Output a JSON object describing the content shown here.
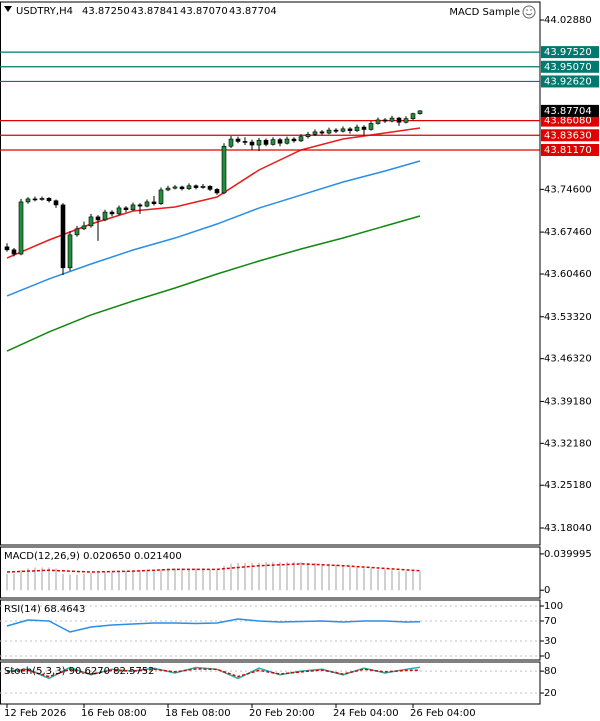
{
  "chart_data": [
    {
      "type": "candlestick",
      "title": "USDTRY,H4",
      "header_values": [
        "43.87250",
        "43.87841",
        "43.87070",
        "43.87704"
      ],
      "expert": "MACD Sample",
      "up_color": "#1f8f3a",
      "down_color": "#000000",
      "categories": [
        "12 Feb 2026",
        null,
        null,
        null,
        null,
        null,
        null,
        null,
        null,
        null,
        null,
        "16 Feb 08:00",
        null,
        null,
        null,
        null,
        null,
        null,
        null,
        null,
        null,
        null,
        null,
        "18 Feb 08:00",
        null,
        null,
        null,
        null,
        null,
        null,
        null,
        null,
        null,
        null,
        null,
        "20 Feb 20:00",
        null,
        null,
        null,
        null,
        null,
        null,
        null,
        null,
        null,
        null,
        null,
        "24 Feb 04:00",
        null,
        null,
        null,
        null,
        null,
        null,
        null,
        null,
        null,
        null,
        "26 Feb 04:00",
        null
      ],
      "open": [
        43.65,
        43.645,
        43.638,
        43.725,
        43.73,
        43.729,
        43.731,
        43.727,
        43.72,
        43.615,
        43.67,
        43.68,
        43.685,
        43.7,
        43.695,
        43.708,
        43.705,
        43.715,
        43.712,
        43.72,
        43.718,
        43.725,
        43.722,
        43.745,
        43.748,
        43.75,
        43.747,
        43.752,
        43.749,
        43.751,
        43.746,
        43.74,
        43.818,
        43.83,
        43.826,
        43.825,
        43.82,
        43.828,
        43.821,
        43.829,
        43.823,
        43.83,
        43.827,
        43.834,
        43.838,
        43.842,
        43.84,
        43.845,
        43.843,
        43.847,
        43.844,
        43.85,
        43.846,
        43.856,
        43.862,
        43.86,
        43.865,
        43.858,
        43.864,
        43.8725
      ],
      "high": [
        43.656,
        43.648,
        43.73,
        43.733,
        43.734,
        43.734,
        43.733,
        43.729,
        43.723,
        43.676,
        43.685,
        43.692,
        43.705,
        43.703,
        43.712,
        43.711,
        43.719,
        43.718,
        43.724,
        43.723,
        43.729,
        43.735,
        43.749,
        43.752,
        43.753,
        43.752,
        43.756,
        43.754,
        43.755,
        43.753,
        43.748,
        43.823,
        43.835,
        43.834,
        43.833,
        43.829,
        43.832,
        43.831,
        43.833,
        43.832,
        43.834,
        43.833,
        43.838,
        43.842,
        43.846,
        43.845,
        43.849,
        43.848,
        43.851,
        43.85,
        43.854,
        43.853,
        43.86,
        43.866,
        43.865,
        43.869,
        43.867,
        43.868,
        43.874,
        43.87841
      ],
      "low": [
        43.642,
        43.634,
        43.636,
        43.722,
        43.726,
        43.727,
        43.724,
        43.715,
        43.603,
        43.61,
        43.667,
        43.678,
        43.682,
        43.66,
        43.693,
        43.701,
        43.703,
        43.708,
        43.71,
        43.705,
        43.716,
        43.719,
        43.72,
        43.743,
        43.746,
        43.744,
        43.745,
        43.746,
        43.747,
        43.743,
        43.737,
        43.738,
        43.815,
        43.823,
        43.82,
        43.812,
        43.81,
        43.818,
        43.819,
        43.818,
        43.821,
        43.824,
        43.825,
        43.831,
        43.835,
        43.837,
        43.838,
        43.84,
        43.841,
        43.839,
        43.842,
        43.836,
        43.844,
        43.854,
        43.857,
        43.858,
        43.852,
        43.856,
        43.861,
        43.8707
      ],
      "close": [
        43.645,
        43.638,
        43.725,
        43.73,
        43.729,
        43.731,
        43.727,
        43.72,
        43.615,
        43.67,
        43.68,
        43.685,
        43.7,
        43.695,
        43.708,
        43.705,
        43.715,
        43.712,
        43.72,
        43.718,
        43.725,
        43.722,
        43.745,
        43.748,
        43.75,
        43.747,
        43.752,
        43.749,
        43.751,
        43.746,
        43.74,
        43.818,
        43.83,
        43.826,
        43.825,
        43.82,
        43.828,
        43.821,
        43.829,
        43.823,
        43.83,
        43.827,
        43.834,
        43.838,
        43.842,
        43.84,
        43.845,
        43.843,
        43.847,
        43.844,
        43.85,
        43.846,
        43.856,
        43.862,
        43.86,
        43.865,
        43.858,
        43.864,
        43.8725,
        43.87704
      ],
      "series": [
        {
          "color": "#e81c1c",
          "x": [
            0,
            6,
            12,
            18,
            24,
            30,
            36,
            42,
            48,
            54,
            59
          ],
          "values": [
            43.6313,
            43.6614,
            43.6881,
            43.7098,
            43.7165,
            43.7332,
            43.7783,
            43.8117,
            43.8301,
            43.8401,
            43.8484
          ]
        },
        {
          "color": "#2a8ee8",
          "x": [
            0,
            6,
            12,
            18,
            24,
            30,
            36,
            42,
            48,
            54,
            59
          ],
          "values": [
            43.5679,
            43.5963,
            43.6213,
            43.6447,
            43.6647,
            43.6881,
            43.7148,
            43.7365,
            43.7583,
            43.7766,
            43.7933
          ]
        },
        {
          "color": "#118811",
          "x": [
            0,
            6,
            12,
            18,
            24,
            30,
            36,
            42,
            48,
            54,
            59
          ],
          "values": [
            43.476,
            43.5078,
            43.5362,
            43.5595,
            43.5812,
            43.6046,
            43.6263,
            43.6464,
            43.6647,
            43.6848,
            43.7015
          ]
        }
      ],
      "levels": [
        {
          "value": 43.9752,
          "label": "43.97520",
          "color": "#007a6e"
        },
        {
          "value": 43.9507,
          "label": "43.95070",
          "color": "#007a6e"
        },
        {
          "value": 43.9262,
          "label": "43.92620",
          "color": "#007a6e"
        },
        {
          "value": 43.8608,
          "label": "43.86080",
          "color": "#e00000"
        },
        {
          "value": 43.8363,
          "label": "43.83630",
          "color": "#e00000"
        },
        {
          "value": 43.8117,
          "label": "43.81170",
          "color": "#e00000"
        }
      ],
      "current_price": {
        "value": 43.87704,
        "label": "43.87704"
      },
      "ylim": [
        43.152,
        44.0589
      ],
      "yticks": [
        {
          "value": 44.0288,
          "label": "44.02880"
        },
        {
          "value": 43.746,
          "label": "43.74600"
        },
        {
          "value": 43.6746,
          "label": "43.67460"
        },
        {
          "value": 43.6046,
          "label": "43.60460"
        },
        {
          "value": 43.5332,
          "label": "43.53320"
        },
        {
          "value": 43.4632,
          "label": "43.46320"
        },
        {
          "value": 43.3918,
          "label": "43.39180"
        },
        {
          "value": 43.3218,
          "label": "43.32180"
        },
        {
          "value": 43.2518,
          "label": "43.25180"
        },
        {
          "value": 43.1804,
          "label": "43.18040"
        }
      ]
    },
    {
      "type": "macd",
      "title": "MACD(12,26,9) 0.020650 0.021400",
      "histogram": {
        "color": "#a0a0a0",
        "values": [
          0.018,
          0.018,
          0.022,
          0.024,
          0.025,
          0.025,
          0.025,
          0.024,
          0.018,
          0.017,
          0.017,
          0.018,
          0.019,
          0.019,
          0.02,
          0.02,
          0.021,
          0.021,
          0.022,
          0.022,
          0.022,
          0.022,
          0.023,
          0.024,
          0.024,
          0.024,
          0.024,
          0.024,
          0.024,
          0.023,
          0.022,
          0.027,
          0.029,
          0.03,
          0.03,
          0.03,
          0.03,
          0.031,
          0.031,
          0.031,
          0.031,
          0.031,
          0.031,
          0.03,
          0.03,
          0.029,
          0.029,
          0.028,
          0.027,
          0.026,
          0.025,
          0.024,
          0.024,
          0.023,
          0.023,
          0.022,
          0.021,
          0.021,
          0.021,
          0.02065
        ]
      },
      "signal": {
        "color": "#e00000",
        "x": [
          0,
          6,
          12,
          18,
          24,
          30,
          36,
          42,
          48,
          54,
          59
        ],
        "values": [
          0.02,
          0.022,
          0.02,
          0.021,
          0.023,
          0.023,
          0.027,
          0.029,
          0.027,
          0.024,
          0.0214
        ]
      },
      "ylim": [
        -0.0086,
        0.0476
      ],
      "yticks": [
        0.039995,
        0
      ]
    },
    {
      "type": "line",
      "title": "RSI(14) 68.4643",
      "series": [
        {
          "color": "#2a8ee8",
          "dashed": false,
          "x": [
            0,
            3,
            6,
            9,
            12,
            15,
            18,
            21,
            24,
            27,
            30,
            33,
            36,
            39,
            42,
            45,
            48,
            51,
            54,
            57,
            59
          ],
          "values": [
            60,
            72,
            70,
            48,
            58,
            62,
            64,
            66,
            66,
            65,
            66,
            74,
            70,
            68,
            69,
            70,
            68,
            70,
            70,
            68,
            68.4643
          ]
        }
      ],
      "ylim": [
        -8,
        112
      ],
      "yticks": [
        100,
        70,
        30,
        0
      ]
    },
    {
      "type": "line",
      "title": "Stoch(5,3,3) 90.6270 82.5752",
      "series": [
        {
          "color": "#20b2aa",
          "dashed": false,
          "x": [
            0,
            3,
            6,
            9,
            12,
            15,
            18,
            21,
            24,
            27,
            30,
            33,
            36,
            39,
            42,
            45,
            48,
            51,
            54,
            57,
            59
          ],
          "values": [
            80,
            85,
            60,
            90,
            70,
            85,
            80,
            88,
            75,
            90,
            85,
            60,
            88,
            70,
            80,
            85,
            70,
            88,
            75,
            85,
            90.627
          ]
        },
        {
          "color": "#e00000",
          "dashed": true,
          "x": [
            0,
            3,
            6,
            9,
            12,
            15,
            18,
            21,
            24,
            27,
            30,
            33,
            36,
            39,
            42,
            45,
            48,
            51,
            54,
            57,
            59
          ],
          "values": [
            78,
            82,
            65,
            85,
            72,
            82,
            80,
            85,
            78,
            86,
            85,
            65,
            82,
            72,
            78,
            83,
            72,
            85,
            78,
            82,
            82.5752
          ]
        }
      ],
      "ylim": [
        -10,
        105
      ],
      "yticks": [
        80,
        20
      ]
    }
  ]
}
